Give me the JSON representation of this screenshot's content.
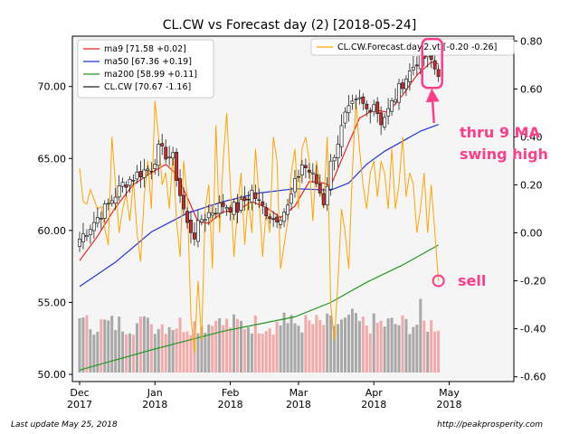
{
  "chart_data": {
    "type": "candlestick",
    "title": "CL.CW vs Forecast day (2)  [2018-05-24]",
    "left_axis": {
      "ylim": [
        49.5,
        73.5
      ],
      "ticks": [
        "50.00",
        "55.00",
        "60.00",
        "65.00",
        "70.00"
      ],
      "tick_values": [
        50,
        55,
        60,
        65,
        70
      ]
    },
    "right_axis": {
      "ylim": [
        -0.62,
        0.82
      ],
      "ticks": [
        "-0.60",
        "-0.40",
        "-0.20",
        "0.00",
        "0.20",
        "0.40",
        "0.60",
        "0.80"
      ],
      "tick_values": [
        -0.6,
        -0.4,
        -0.2,
        0.0,
        0.2,
        0.4,
        0.6,
        0.8
      ]
    },
    "x_ticks": [
      {
        "label": "Dec\n2017",
        "index": 0
      },
      {
        "label": "Jan\n2018",
        "index": 21
      },
      {
        "label": "Feb\n2018",
        "index": 42
      },
      {
        "label": "Mar\n2018",
        "index": 61
      },
      {
        "label": "Apr\n2018",
        "index": 82
      },
      {
        "label": "May\n2018",
        "index": 103
      }
    ],
    "n_days": 120,
    "legend_left": [
      {
        "label": "ma9 [71.58 +0.02]",
        "color": "#ee2222"
      },
      {
        "label": "ma50 [67.36 +0.19]",
        "color": "#2233dd"
      },
      {
        "label": "ma200 [58.99 +0.11]",
        "color": "#229922"
      },
      {
        "label": "CL.CW [70.67 -1.16]",
        "color": "#222222"
      }
    ],
    "legend_right": [
      {
        "label": "CL.CW.Forecast.day.2.vt [-0.20 -0.26]",
        "color": "#ffa500"
      }
    ],
    "price_anchors": [
      [
        0,
        59.4
      ],
      [
        4,
        60.6
      ],
      [
        8,
        61.8
      ],
      [
        12,
        63.2
      ],
      [
        16,
        63.9
      ],
      [
        20,
        64.4
      ],
      [
        22,
        65.6
      ],
      [
        26,
        65.0
      ],
      [
        28,
        62.5
      ],
      [
        30,
        60.4
      ],
      [
        32,
        59.7
      ],
      [
        34,
        60.8
      ],
      [
        36,
        61.2
      ],
      [
        40,
        61.8
      ],
      [
        44,
        61.5
      ],
      [
        48,
        62.7
      ],
      [
        50,
        61.9
      ],
      [
        54,
        60.8
      ],
      [
        56,
        61.1
      ],
      [
        58,
        61.6
      ],
      [
        60,
        63.2
      ],
      [
        62,
        64.6
      ],
      [
        64,
        64.1
      ],
      [
        66,
        63.3
      ],
      [
        68,
        62.0
      ],
      [
        70,
        64.6
      ],
      [
        72,
        66.2
      ],
      [
        74,
        67.9
      ],
      [
        76,
        68.6
      ],
      [
        78,
        69.0
      ],
      [
        80,
        68.4
      ],
      [
        82,
        68.9
      ],
      [
        84,
        67.6
      ],
      [
        86,
        68.3
      ],
      [
        88,
        69.3
      ],
      [
        90,
        70.3
      ],
      [
        92,
        71.0
      ],
      [
        94,
        71.8
      ],
      [
        96,
        72.0
      ],
      [
        98,
        71.8
      ],
      [
        100,
        70.7
      ]
    ],
    "series": [
      {
        "name": "ma9",
        "color": "#ee2222",
        "points": [
          [
            0,
            57.9
          ],
          [
            5,
            59.6
          ],
          [
            10,
            61.6
          ],
          [
            15,
            63.2
          ],
          [
            20,
            64.0
          ],
          [
            24,
            64.6
          ],
          [
            27,
            63.9
          ],
          [
            30,
            62.3
          ],
          [
            33,
            60.6
          ],
          [
            36,
            60.5
          ],
          [
            40,
            61.3
          ],
          [
            44,
            61.4
          ],
          [
            48,
            62.0
          ],
          [
            52,
            61.6
          ],
          [
            56,
            60.9
          ],
          [
            60,
            61.7
          ],
          [
            64,
            63.4
          ],
          [
            68,
            63.3
          ],
          [
            70,
            63.1
          ],
          [
            74,
            65.5
          ],
          [
            78,
            67.8
          ],
          [
            82,
            68.4
          ],
          [
            86,
            68.2
          ],
          [
            90,
            69.4
          ],
          [
            94,
            70.8
          ],
          [
            98,
            71.7
          ],
          [
            100,
            71.58
          ]
        ]
      },
      {
        "name": "ma50",
        "color": "#2233dd",
        "points": [
          [
            0,
            56.1
          ],
          [
            10,
            57.8
          ],
          [
            20,
            59.9
          ],
          [
            30,
            61.2
          ],
          [
            40,
            62.0
          ],
          [
            50,
            62.6
          ],
          [
            60,
            62.9
          ],
          [
            70,
            62.8
          ],
          [
            75,
            63.3
          ],
          [
            80,
            64.6
          ],
          [
            85,
            65.5
          ],
          [
            90,
            66.2
          ],
          [
            95,
            66.9
          ],
          [
            100,
            67.36
          ]
        ]
      },
      {
        "name": "ma200",
        "color": "#229922",
        "points": [
          [
            0,
            50.3
          ],
          [
            20,
            51.7
          ],
          [
            40,
            53.0
          ],
          [
            60,
            54.0
          ],
          [
            70,
            55.0
          ],
          [
            80,
            56.4
          ],
          [
            90,
            57.6
          ],
          [
            100,
            58.99
          ]
        ]
      },
      {
        "name": "CL.CW.Forecast.day.2.vt",
        "color": "#ffa500",
        "axis": "right",
        "values": [
          0.27,
          0.13,
          0.12,
          0.18,
          0.14,
          0.1,
          0.11,
          0.02,
          -0.05,
          0.4,
          0.2,
          0.0,
          0.1,
          0.16,
          0.05,
          0.22,
          0.0,
          -0.12,
          0.15,
          0.3,
          0.1,
          0.55,
          0.4,
          0.2,
          0.25,
          0.1,
          0.33,
          0.05,
          -0.1,
          0.3,
          0.15,
          -0.35,
          -0.5,
          -0.2,
          -0.45,
          0.1,
          0.2,
          -0.15,
          0.45,
          0.0,
          0.3,
          0.5,
          0.2,
          -0.1,
          0.1,
          0.25,
          -0.05,
          0.15,
          0.0,
          0.35,
          0.15,
          -0.1,
          0.1,
          0.0,
          0.4,
          0.3,
          -0.15,
          -0.05,
          0.05,
          0.25,
          0.35,
          0.1,
          0.35,
          0.4,
          0.3,
          0.05,
          0.3,
          0.2,
          0.1,
          0.4,
          -0.3,
          -0.45,
          -0.2,
          0.1,
          0.0,
          -0.15,
          0.25,
          0.55,
          0.35,
          0.2,
          0.1,
          0.25,
          0.3,
          0.15,
          0.3,
          0.25,
          0.1,
          0.35,
          0.1,
          0.2,
          0.4,
          0.15,
          0.25,
          0.2,
          0.0,
          0.1,
          0.25,
          0.0,
          0.2,
          0.0,
          -0.2
        ]
      }
    ],
    "annotations": [
      {
        "text": "thru 9 MA",
        "target_index": 98
      },
      {
        "text": "swing high"
      },
      {
        "text": "sell",
        "target_index": 100
      }
    ]
  },
  "footer": {
    "left": "Last update May 25, 2018",
    "right": "http://peakprosperity.com"
  }
}
